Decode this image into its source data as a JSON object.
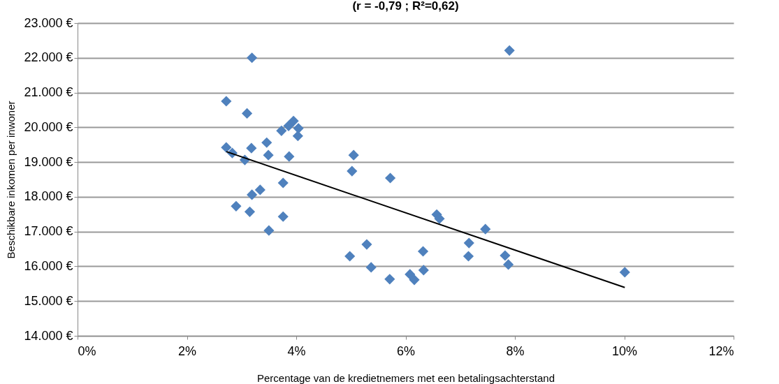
{
  "chart_data": {
    "type": "scatter",
    "title": "(r = -0,79 ; R²=0,62)",
    "xlabel": "Percentage van de kredietnemers met een betalingsachterstand",
    "ylabel": "Beschikbare inkomen per inwoner",
    "grid": "y",
    "xlim": [
      0,
      12
    ],
    "xticks": [
      {
        "value": 0,
        "label": "0%"
      },
      {
        "value": 2,
        "label": "2%"
      },
      {
        "value": 4,
        "label": "4%"
      },
      {
        "value": 6,
        "label": "6%"
      },
      {
        "value": 8,
        "label": "8%"
      },
      {
        "value": 10,
        "label": "10%"
      },
      {
        "value": 12,
        "label": "12%"
      }
    ],
    "ylim": [
      14000,
      23000
    ],
    "yticks": [
      {
        "value": 14000,
        "label": "14.000 €"
      },
      {
        "value": 15000,
        "label": "15.000 €"
      },
      {
        "value": 16000,
        "label": "16.000 €"
      },
      {
        "value": 17000,
        "label": "17.000 €"
      },
      {
        "value": 18000,
        "label": "18.000 €"
      },
      {
        "value": 19000,
        "label": "19.000 €"
      },
      {
        "value": 20000,
        "label": "20.000 €"
      },
      {
        "value": 21000,
        "label": "21.000 €"
      },
      {
        "value": 22000,
        "label": "22.000 €"
      },
      {
        "value": 23000,
        "label": "23.000 €"
      }
    ],
    "series": [
      {
        "marker": "diamond",
        "color": "#4f81bd",
        "x": [
          2.72,
          3.19,
          3.1,
          2.72,
          2.83,
          3.18,
          3.06,
          3.46,
          3.49,
          3.87,
          3.73,
          3.86,
          3.95,
          4.04,
          4.03,
          3.76,
          3.34,
          3.19,
          2.9,
          3.15,
          3.76,
          3.5,
          5.05,
          5.02,
          5.72,
          4.98,
          5.29,
          5.37,
          5.71,
          6.08,
          6.16,
          6.33,
          6.32,
          6.57,
          6.62,
          7.16,
          7.15,
          7.46,
          7.82,
          7.88,
          7.9,
          10.01
        ],
        "values": [
          20750,
          22000,
          20400,
          19420,
          19260,
          19400,
          19060,
          19560,
          19200,
          19160,
          19900,
          20040,
          20180,
          19970,
          19750,
          18400,
          18200,
          18060,
          17730,
          17570,
          17430,
          17030,
          19200,
          18740,
          18540,
          16290,
          16630,
          15970,
          15630,
          15770,
          15610,
          15890,
          16430,
          17490,
          17370,
          16670,
          16290,
          17070,
          16310,
          16050,
          22210,
          15830
        ]
      },
      {
        "type": "line",
        "color": "#000000",
        "x": [
          2.72,
          10.01
        ],
        "values": [
          19300,
          15390
        ]
      }
    ]
  }
}
